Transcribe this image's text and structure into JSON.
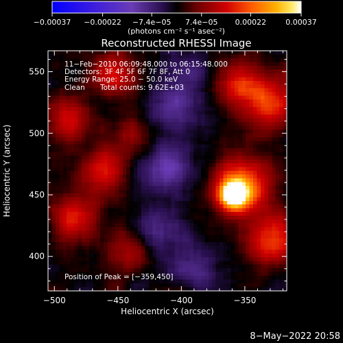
{
  "chart_data": {
    "type": "heatmap",
    "title": "Reconstructed RHESSI Image",
    "xlabel": "Heliocentric X (arcsec)",
    "ylabel": "Heliocentric Y (arcsec)",
    "x_range": [
      -505,
      -317
    ],
    "y_range": [
      372,
      567
    ],
    "x_ticks": [
      -500,
      -450,
      -400,
      -350
    ],
    "y_ticks": [
      400,
      450,
      500,
      550
    ],
    "x_tick_labels": [
      "−500",
      "−450",
      "−400",
      "−350"
    ],
    "y_tick_labels": [
      "400",
      "450",
      "500",
      "550"
    ],
    "colorbar": {
      "range": [
        -0.00037,
        0.00037
      ],
      "ticks": [
        -0.00037,
        -0.00022,
        -7.4e-05,
        7.4e-05,
        0.00022,
        0.00037
      ],
      "tick_labels": [
        "−0.00037",
        "−0.00022",
        "−7.4e−05",
        "7.4e−05",
        "0.00022",
        "0.00037"
      ],
      "unit_label": "(photons cm⁻² s⁻¹ asec⁻²)"
    },
    "sources": [
      {
        "x": -359,
        "y": 450,
        "amplitude": 0.00037,
        "sigma": 8
      },
      {
        "x": -352,
        "y": 458,
        "amplitude": 0.00022,
        "sigma": 16
      },
      {
        "x": -330,
        "y": 415,
        "amplitude": 0.00018,
        "sigma": 15
      },
      {
        "x": -330,
        "y": 525,
        "amplitude": 0.00019,
        "sigma": 15
      },
      {
        "x": -355,
        "y": 540,
        "amplitude": 0.00015,
        "sigma": 13
      },
      {
        "x": -460,
        "y": 470,
        "amplitude": 0.00017,
        "sigma": 12
      },
      {
        "x": -485,
        "y": 430,
        "amplitude": 0.00016,
        "sigma": 13
      },
      {
        "x": -455,
        "y": 548,
        "amplitude": 0.00016,
        "sigma": 12
      },
      {
        "x": -490,
        "y": 510,
        "amplitude": 0.00014,
        "sigma": 13
      },
      {
        "x": -440,
        "y": 405,
        "amplitude": 0.00012,
        "sigma": 12
      },
      {
        "x": -440,
        "y": 500,
        "amplitude": 0.0001,
        "sigma": 10
      },
      {
        "x": -410,
        "y": 470,
        "amplitude": -0.00012,
        "sigma": 14
      },
      {
        "x": -405,
        "y": 520,
        "amplitude": -0.0001,
        "sigma": 14
      },
      {
        "x": -420,
        "y": 420,
        "amplitude": -0.0001,
        "sigma": 14
      },
      {
        "x": -392,
        "y": 392,
        "amplitude": -9e-05,
        "sigma": 12
      },
      {
        "x": -395,
        "y": 550,
        "amplitude": -8e-05,
        "sigma": 12
      }
    ],
    "peak": {
      "x": -359,
      "y": 450
    }
  },
  "info": {
    "line1": "11−Feb−2010 06:09:48.000 to 06:15:48.000",
    "line2": "Detectors: 3F 4F 5F 6F 7F 8F, Att 0",
    "line3": "Energy Range: 25.0 − 50.0 keV",
    "line4a": "Clean",
    "line4b": "Total counts: 9.62E+03",
    "peak_label": "Position of Peak = [−359,450]"
  },
  "footer": {
    "timestamp": "8−May−2022 20:58"
  },
  "colors": {
    "background": "#000000",
    "text": "#ffffff",
    "colormap": [
      "#0000ff",
      "#3020d0",
      "#5a2ab8",
      "#6a3cb4",
      "#2a1050",
      "#000000",
      "#5a0000",
      "#b00000",
      "#ff2a00",
      "#ff8000",
      "#ffd000",
      "#ffffff"
    ]
  }
}
